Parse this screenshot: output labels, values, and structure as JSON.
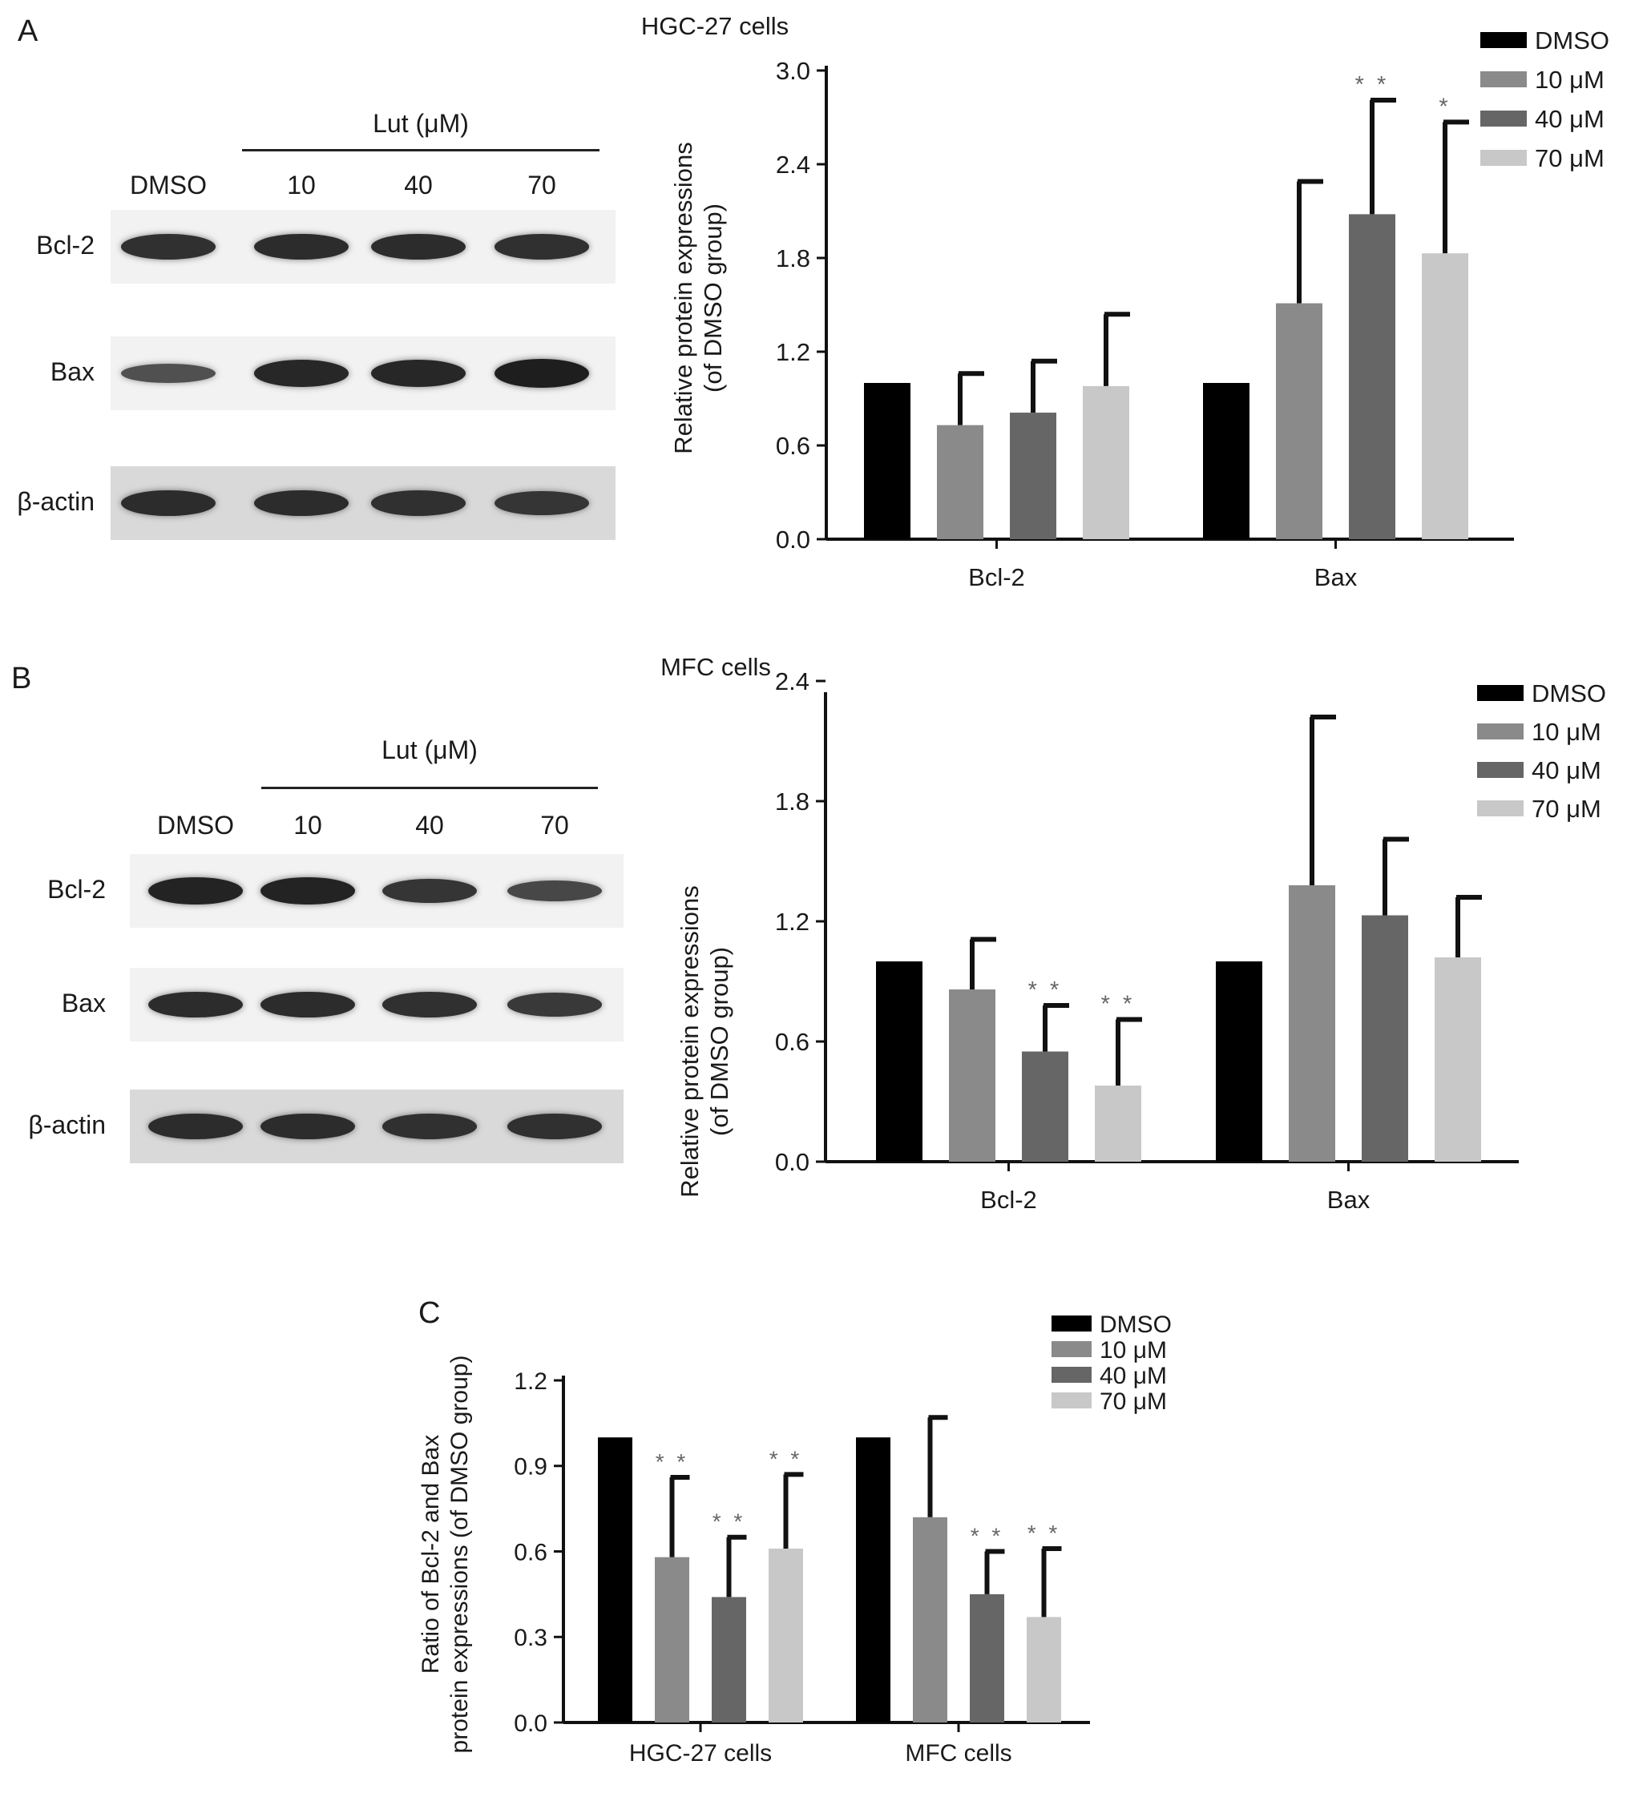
{
  "panels": {
    "A": {
      "letter": "A",
      "blot": {
        "treatment_label": "Lut (μM)",
        "lanes": [
          "DMSO",
          "10",
          "40",
          "70"
        ],
        "rows": [
          {
            "label": "Bcl-2",
            "intensities": [
              0.8,
              0.85,
              0.85,
              0.8
            ]
          },
          {
            "label": "Bax",
            "intensities": [
              0.45,
              0.9,
              0.9,
              1.0
            ]
          },
          {
            "label": "β-actin",
            "intensities": [
              0.85,
              0.85,
              0.8,
              0.75
            ]
          }
        ]
      }
    },
    "B": {
      "letter": "B",
      "blot": {
        "treatment_label": "Lut (μM)",
        "lanes": [
          "DMSO",
          "10",
          "40",
          "70"
        ],
        "rows": [
          {
            "label": "Bcl-2",
            "intensities": [
              0.95,
              0.95,
              0.75,
              0.55
            ]
          },
          {
            "label": "Bax",
            "intensities": [
              0.85,
              0.85,
              0.8,
              0.7
            ]
          },
          {
            "label": "β-actin",
            "intensities": [
              0.85,
              0.85,
              0.8,
              0.8
            ]
          }
        ]
      }
    },
    "C": {
      "letter": "C"
    }
  },
  "colors": {
    "DMSO": "#000000",
    "10 μM": "#8a8a8a",
    "40 μM": "#666666",
    "70 μM": "#c8c8c8"
  },
  "chart_data": [
    {
      "id": "A",
      "type": "bar",
      "title": "HGC-27 cells",
      "ylabel_lines": [
        "Relative protein expressions",
        "(of DMSO group)"
      ],
      "categories": [
        "Bcl-2",
        "Bax"
      ],
      "ylim": [
        0,
        3.0
      ],
      "yticks": [
        "0.0",
        "0.6",
        "1.2",
        "1.8",
        "2.4",
        "3.0"
      ],
      "legend": "top-right",
      "series": [
        {
          "name": "DMSO",
          "values": [
            1.0,
            1.0
          ],
          "errors": [
            0,
            0
          ],
          "sig": [
            "",
            ""
          ]
        },
        {
          "name": "10 μM",
          "values": [
            0.73,
            1.51
          ],
          "errors": [
            0.33,
            0.78
          ],
          "sig": [
            "",
            ""
          ]
        },
        {
          "name": "40 μM",
          "values": [
            0.81,
            2.08
          ],
          "errors": [
            0.33,
            0.73
          ],
          "sig": [
            "",
            "* *"
          ]
        },
        {
          "name": "70 μM",
          "values": [
            0.98,
            1.83
          ],
          "errors": [
            0.46,
            0.84
          ],
          "sig": [
            "",
            "*"
          ]
        }
      ]
    },
    {
      "id": "B",
      "type": "bar",
      "title": "MFC cells",
      "ylabel_lines": [
        "Relative protein expressions",
        "(of DMSO group)"
      ],
      "categories": [
        "Bcl-2",
        "Bax"
      ],
      "ylim": [
        0,
        2.6
      ],
      "yticks": [
        "0.0",
        "0.6",
        "1.2",
        "1.8",
        "2.4"
      ],
      "legend": "top-right",
      "series": [
        {
          "name": "DMSO",
          "values": [
            1.0,
            1.0
          ],
          "errors": [
            0,
            0
          ],
          "sig": [
            "",
            ""
          ]
        },
        {
          "name": "10 μM",
          "values": [
            0.86,
            1.38
          ],
          "errors": [
            0.25,
            0.84
          ],
          "sig": [
            "",
            ""
          ]
        },
        {
          "name": "40 μM",
          "values": [
            0.55,
            1.23
          ],
          "errors": [
            0.23,
            0.38
          ],
          "sig": [
            "* *",
            ""
          ]
        },
        {
          "name": "70 μM",
          "values": [
            0.38,
            1.02
          ],
          "errors": [
            0.33,
            0.3
          ],
          "sig": [
            "* *",
            ""
          ]
        }
      ]
    },
    {
      "id": "C",
      "type": "bar",
      "title": "",
      "ylabel_lines": [
        "Ratio of Bcl-2 and Bax",
        "protein expressions (of DMSO group)"
      ],
      "categories": [
        "HGC-27 cells",
        "MFC cells"
      ],
      "ylim": [
        0,
        1.2
      ],
      "yticks": [
        "0.0",
        "0.3",
        "0.6",
        "0.9",
        "1.2"
      ],
      "legend": "top-right",
      "series": [
        {
          "name": "DMSO",
          "values": [
            1.0,
            1.0
          ],
          "errors": [
            0,
            0
          ],
          "sig": [
            "",
            ""
          ]
        },
        {
          "name": "10 μM",
          "values": [
            0.58,
            0.72
          ],
          "errors": [
            0.28,
            0.35
          ],
          "sig": [
            "* *",
            ""
          ]
        },
        {
          "name": "40 μM",
          "values": [
            0.44,
            0.45
          ],
          "errors": [
            0.21,
            0.15
          ],
          "sig": [
            "* *",
            "* *"
          ]
        },
        {
          "name": "70 μM",
          "values": [
            0.61,
            0.37
          ],
          "errors": [
            0.26,
            0.24
          ],
          "sig": [
            "* *",
            "* *"
          ]
        }
      ]
    }
  ]
}
